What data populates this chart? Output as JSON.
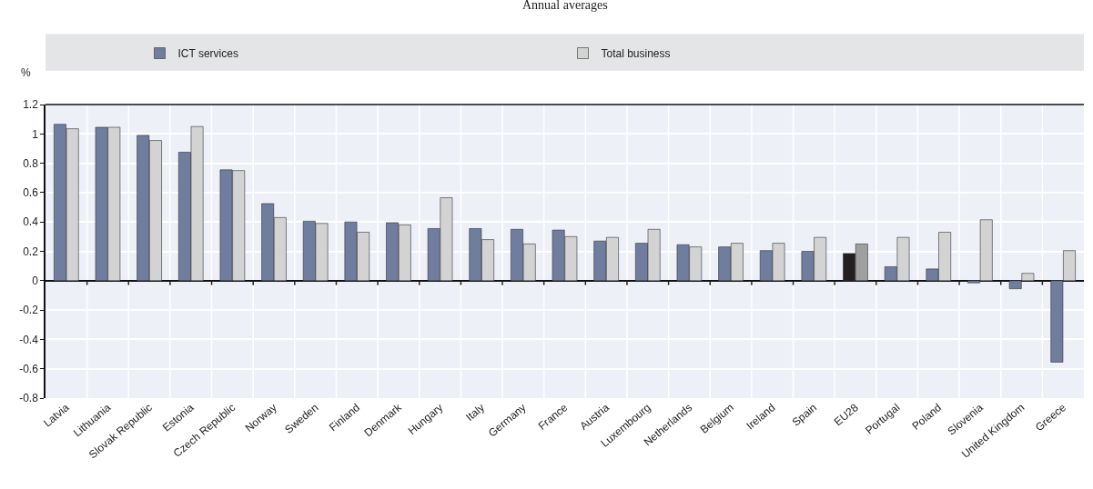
{
  "chart_data": {
    "type": "bar",
    "subtitle": "Annual averages",
    "ylabel": "%",
    "categories": [
      "Latvia",
      "Lithuania",
      "Slovak Republic",
      "Estonia",
      "Czech Republic",
      "Norway",
      "Sweden",
      "Finland",
      "Denmark",
      "Hungary",
      "Italy",
      "Germany",
      "France",
      "Austria",
      "Luxembourg",
      "Netherlands",
      "Belgium",
      "Ireland",
      "Spain",
      "EU28",
      "Portugal",
      "Poland",
      "Slovenia",
      "United Kingdom",
      "Greece"
    ],
    "series": [
      {
        "name": "ICT services",
        "colors": [
          "#6f7d9e",
          "#6f7d9e",
          "#6f7d9e",
          "#6f7d9e",
          "#6f7d9e",
          "#6f7d9e",
          "#6f7d9e",
          "#6f7d9e",
          "#6f7d9e",
          "#6f7d9e",
          "#6f7d9e",
          "#6f7d9e",
          "#6f7d9e",
          "#6f7d9e",
          "#6f7d9e",
          "#6f7d9e",
          "#6f7d9e",
          "#6f7d9e",
          "#6f7d9e",
          "#231f20",
          "#6f7d9e",
          "#6f7d9e",
          "#6f7d9e",
          "#6f7d9e",
          "#6f7d9e"
        ],
        "values": [
          1.065,
          1.045,
          0.99,
          0.875,
          0.755,
          0.525,
          0.405,
          0.4,
          0.395,
          0.355,
          0.355,
          0.35,
          0.345,
          0.27,
          0.255,
          0.245,
          0.23,
          0.205,
          0.2,
          0.185,
          0.095,
          0.08,
          -0.015,
          -0.055,
          -0.555
        ]
      },
      {
        "name": "Total business",
        "colors": [
          "#d3d3d3",
          "#d3d3d3",
          "#d3d3d3",
          "#d3d3d3",
          "#d3d3d3",
          "#d3d3d3",
          "#d3d3d3",
          "#d3d3d3",
          "#d3d3d3",
          "#d3d3d3",
          "#d3d3d3",
          "#d3d3d3",
          "#d3d3d3",
          "#d3d3d3",
          "#d3d3d3",
          "#d3d3d3",
          "#d3d3d3",
          "#d3d3d3",
          "#d3d3d3",
          "#a0a0a0",
          "#d3d3d3",
          "#d3d3d3",
          "#d3d3d3",
          "#d3d3d3",
          "#d3d3d3"
        ],
        "values": [
          1.035,
          1.045,
          0.955,
          1.05,
          0.75,
          0.43,
          0.39,
          0.33,
          0.38,
          0.565,
          0.28,
          0.25,
          0.3,
          0.295,
          0.35,
          0.23,
          0.255,
          0.255,
          0.295,
          0.25,
          0.295,
          0.33,
          0.415,
          0.05,
          0.205
        ]
      }
    ],
    "ylim": [
      -0.8,
      1.2
    ],
    "yticks": [
      -0.8,
      -0.6,
      -0.4,
      -0.2,
      0,
      0.2,
      0.4,
      0.6,
      0.8,
      1,
      1.2
    ],
    "grid": true,
    "legend": "top"
  }
}
